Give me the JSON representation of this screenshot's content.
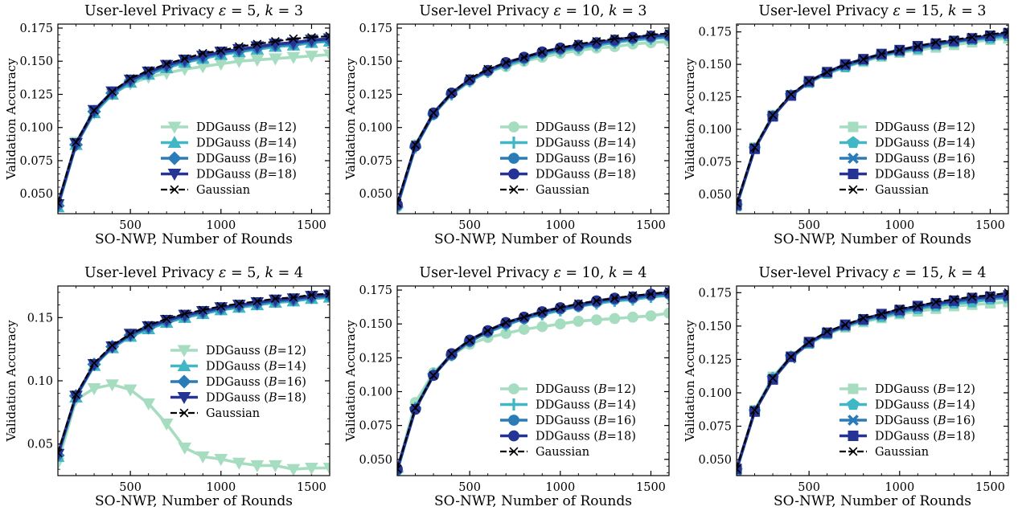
{
  "legend_prefix": "DDGauss (",
  "legend_suffix": ")",
  "legend_var": "B",
  "gaussian_label": "Gaussian",
  "colors": {
    "b12": "#a6dcc0",
    "b14": "#41b6c4",
    "b16": "#2b7bb9",
    "b18": "#253494",
    "gauss": "#000000"
  },
  "chart_data": [
    {
      "type": "line",
      "title": "User-level Privacy ε = 5, k = 3",
      "xlabel": "SO-NWP, Number of Rounds",
      "ylabel": "Validation Accuracy",
      "xlim": [
        100,
        1600
      ],
      "ylim": [
        0.035,
        0.178
      ],
      "xticks": [
        500,
        1000,
        1500
      ],
      "yticks": [
        0.05,
        0.075,
        0.1,
        0.125,
        0.15,
        0.175
      ],
      "ytick_labels": [
        "0.050",
        "0.075",
        "0.100",
        "0.125",
        "0.150",
        "0.175"
      ],
      "legend_position": "lower-right",
      "markers": [
        "tri-down",
        "tri-up",
        "diamond",
        "tri-down"
      ],
      "x": [
        100,
        200,
        300,
        400,
        500,
        600,
        700,
        800,
        900,
        1000,
        1100,
        1200,
        1300,
        1400,
        1500,
        1600
      ],
      "series": [
        {
          "name": "B=12",
          "values": [
            0.04,
            0.089,
            0.111,
            0.125,
            0.133,
            0.138,
            0.141,
            0.144,
            0.146,
            0.148,
            0.15,
            0.151,
            0.152,
            0.153,
            0.154,
            0.155
          ]
        },
        {
          "name": "B=14",
          "values": [
            0.04,
            0.087,
            0.111,
            0.125,
            0.134,
            0.14,
            0.145,
            0.149,
            0.152,
            0.155,
            0.157,
            0.159,
            0.161,
            0.162,
            0.164,
            0.165
          ]
        },
        {
          "name": "B=16",
          "values": [
            0.041,
            0.087,
            0.112,
            0.126,
            0.135,
            0.141,
            0.146,
            0.15,
            0.153,
            0.156,
            0.158,
            0.16,
            0.162,
            0.163,
            0.165,
            0.166
          ]
        },
        {
          "name": "B=18",
          "values": [
            0.042,
            0.088,
            0.113,
            0.127,
            0.136,
            0.142,
            0.147,
            0.151,
            0.154,
            0.157,
            0.159,
            0.161,
            0.163,
            0.164,
            0.166,
            0.167
          ]
        },
        {
          "name": "Gaussian",
          "values": [
            0.043,
            0.089,
            0.113,
            0.127,
            0.137,
            0.143,
            0.148,
            0.152,
            0.156,
            0.158,
            0.161,
            0.163,
            0.165,
            0.167,
            0.168,
            0.169
          ]
        }
      ]
    },
    {
      "type": "line",
      "title": "User-level Privacy ε = 10, k = 3",
      "xlabel": "SO-NWP, Number of Rounds",
      "ylabel": "Validation Accuracy",
      "xlim": [
        100,
        1600
      ],
      "ylim": [
        0.035,
        0.178
      ],
      "xticks": [
        500,
        1000,
        1500
      ],
      "yticks": [
        0.05,
        0.075,
        0.1,
        0.125,
        0.15,
        0.175
      ],
      "ytick_labels": [
        "0.050",
        "0.075",
        "0.100",
        "0.125",
        "0.150",
        "0.175"
      ],
      "legend_position": "lower-right",
      "markers": [
        "circle",
        "plus",
        "circle",
        "circle"
      ],
      "x": [
        100,
        200,
        300,
        400,
        500,
        600,
        700,
        800,
        900,
        1000,
        1100,
        1200,
        1300,
        1400,
        1500,
        1600
      ],
      "series": [
        {
          "name": "B=12",
          "values": [
            0.04,
            0.087,
            0.111,
            0.126,
            0.135,
            0.142,
            0.146,
            0.15,
            0.153,
            0.156,
            0.158,
            0.16,
            0.161,
            0.163,
            0.164,
            0.165
          ]
        },
        {
          "name": "B=14",
          "values": [
            0.04,
            0.085,
            0.11,
            0.125,
            0.135,
            0.142,
            0.147,
            0.151,
            0.155,
            0.158,
            0.16,
            0.162,
            0.164,
            0.166,
            0.167,
            0.168
          ]
        },
        {
          "name": "B=16",
          "values": [
            0.041,
            0.086,
            0.11,
            0.126,
            0.136,
            0.143,
            0.148,
            0.152,
            0.156,
            0.159,
            0.161,
            0.163,
            0.165,
            0.167,
            0.168,
            0.169
          ]
        },
        {
          "name": "B=18",
          "values": [
            0.042,
            0.086,
            0.111,
            0.126,
            0.136,
            0.143,
            0.149,
            0.153,
            0.157,
            0.16,
            0.162,
            0.164,
            0.166,
            0.168,
            0.169,
            0.17
          ]
        },
        {
          "name": "Gaussian",
          "values": [
            0.043,
            0.087,
            0.111,
            0.126,
            0.137,
            0.144,
            0.149,
            0.153,
            0.157,
            0.16,
            0.163,
            0.165,
            0.167,
            0.168,
            0.17,
            0.171
          ]
        }
      ]
    },
    {
      "type": "line",
      "title": "User-level Privacy ε = 15, k = 3",
      "xlabel": "SO-NWP, Number of Rounds",
      "ylabel": "Validation Accuracy",
      "xlim": [
        100,
        1600
      ],
      "ylim": [
        0.035,
        0.181
      ],
      "xticks": [
        500,
        1000,
        1500
      ],
      "yticks": [
        0.05,
        0.075,
        0.1,
        0.125,
        0.15,
        0.175
      ],
      "ytick_labels": [
        "0.050",
        "0.075",
        "0.100",
        "0.125",
        "0.150",
        "0.175"
      ],
      "legend_position": "lower-right",
      "markers": [
        "square",
        "pentagon",
        "cross",
        "square"
      ],
      "x": [
        100,
        200,
        300,
        400,
        500,
        600,
        700,
        800,
        900,
        1000,
        1100,
        1200,
        1300,
        1400,
        1500,
        1600
      ],
      "series": [
        {
          "name": "B=12",
          "values": [
            0.041,
            0.086,
            0.111,
            0.126,
            0.136,
            0.143,
            0.148,
            0.152,
            0.156,
            0.159,
            0.161,
            0.163,
            0.165,
            0.167,
            0.169,
            0.17
          ]
        },
        {
          "name": "B=14",
          "values": [
            0.041,
            0.085,
            0.11,
            0.126,
            0.136,
            0.143,
            0.148,
            0.153,
            0.157,
            0.16,
            0.162,
            0.165,
            0.167,
            0.169,
            0.17,
            0.172
          ]
        },
        {
          "name": "B=16",
          "values": [
            0.041,
            0.085,
            0.11,
            0.126,
            0.136,
            0.144,
            0.149,
            0.153,
            0.157,
            0.16,
            0.163,
            0.165,
            0.168,
            0.169,
            0.171,
            0.173
          ]
        },
        {
          "name": "B=18",
          "values": [
            0.042,
            0.085,
            0.11,
            0.126,
            0.137,
            0.144,
            0.15,
            0.154,
            0.158,
            0.161,
            0.164,
            0.166,
            0.168,
            0.17,
            0.172,
            0.174
          ]
        },
        {
          "name": "Gaussian",
          "values": [
            0.043,
            0.086,
            0.111,
            0.127,
            0.137,
            0.144,
            0.15,
            0.154,
            0.158,
            0.161,
            0.164,
            0.167,
            0.169,
            0.171,
            0.173,
            0.175
          ]
        }
      ]
    },
    {
      "type": "line",
      "title": "User-level Privacy ε = 5, k = 4",
      "xlabel": "SO-NWP, Number of Rounds",
      "ylabel": "Validation Accuracy",
      "xlim": [
        100,
        1600
      ],
      "ylim": [
        0.025,
        0.175
      ],
      "xticks": [
        500,
        1000,
        1500
      ],
      "yticks": [
        0.05,
        0.1,
        0.15
      ],
      "ytick_labels": [
        "0.05",
        "0.10",
        "0.15"
      ],
      "legend_position": "center-right",
      "markers": [
        "tri-down",
        "tri-up",
        "diamond",
        "tri-down"
      ],
      "x": [
        100,
        200,
        300,
        400,
        500,
        600,
        700,
        800,
        900,
        1000,
        1100,
        1200,
        1300,
        1400,
        1500,
        1600
      ],
      "series": [
        {
          "name": "B=12",
          "values": [
            0.035,
            0.085,
            0.094,
            0.097,
            0.093,
            0.082,
            0.066,
            0.047,
            0.04,
            0.038,
            0.035,
            0.033,
            0.033,
            0.03,
            0.031,
            0.031
          ]
        },
        {
          "name": "B=14",
          "values": [
            0.04,
            0.087,
            0.112,
            0.126,
            0.135,
            0.141,
            0.146,
            0.15,
            0.153,
            0.156,
            0.158,
            0.16,
            0.162,
            0.163,
            0.165,
            0.166
          ]
        },
        {
          "name": "B=16",
          "values": [
            0.041,
            0.088,
            0.113,
            0.127,
            0.136,
            0.142,
            0.147,
            0.151,
            0.154,
            0.157,
            0.159,
            0.161,
            0.163,
            0.164,
            0.166,
            0.167
          ]
        },
        {
          "name": "B=18",
          "values": [
            0.042,
            0.088,
            0.113,
            0.127,
            0.137,
            0.143,
            0.148,
            0.152,
            0.155,
            0.158,
            0.16,
            0.162,
            0.164,
            0.165,
            0.167,
            0.168
          ]
        },
        {
          "name": "Gaussian",
          "values": [
            0.043,
            0.089,
            0.114,
            0.128,
            0.137,
            0.144,
            0.149,
            0.153,
            0.156,
            0.159,
            0.161,
            0.163,
            0.165,
            0.166,
            0.168,
            0.169
          ]
        }
      ]
    },
    {
      "type": "line",
      "title": "User-level Privacy ε = 10, k = 4",
      "xlabel": "SO-NWP, Number of Rounds",
      "ylabel": "Validation Accuracy",
      "xlim": [
        100,
        1600
      ],
      "ylim": [
        0.038,
        0.178
      ],
      "xticks": [
        500,
        1000,
        1500
      ],
      "yticks": [
        0.05,
        0.075,
        0.1,
        0.125,
        0.15,
        0.175
      ],
      "ytick_labels": [
        "0.050",
        "0.075",
        "0.100",
        "0.125",
        "0.150",
        "0.175"
      ],
      "legend_position": "lower-right",
      "markers": [
        "circle",
        "plus",
        "circle",
        "circle"
      ],
      "x": [
        100,
        200,
        300,
        400,
        500,
        600,
        700,
        800,
        900,
        1000,
        1100,
        1200,
        1300,
        1400,
        1500,
        1600
      ],
      "series": [
        {
          "name": "B=12",
          "values": [
            0.042,
            0.092,
            0.114,
            0.127,
            0.135,
            0.14,
            0.143,
            0.146,
            0.148,
            0.15,
            0.152,
            0.153,
            0.154,
            0.155,
            0.156,
            0.158
          ]
        },
        {
          "name": "B=14",
          "values": [
            0.041,
            0.088,
            0.113,
            0.127,
            0.137,
            0.144,
            0.149,
            0.154,
            0.157,
            0.16,
            0.163,
            0.165,
            0.167,
            0.168,
            0.17,
            0.171
          ]
        },
        {
          "name": "B=16",
          "values": [
            0.042,
            0.087,
            0.112,
            0.127,
            0.137,
            0.144,
            0.15,
            0.154,
            0.158,
            0.161,
            0.163,
            0.166,
            0.168,
            0.169,
            0.171,
            0.172
          ]
        },
        {
          "name": "B=18",
          "values": [
            0.043,
            0.087,
            0.112,
            0.128,
            0.138,
            0.145,
            0.151,
            0.155,
            0.159,
            0.162,
            0.164,
            0.167,
            0.169,
            0.17,
            0.172,
            0.173
          ]
        },
        {
          "name": "Gaussian",
          "values": [
            0.043,
            0.088,
            0.112,
            0.128,
            0.138,
            0.145,
            0.151,
            0.155,
            0.159,
            0.162,
            0.165,
            0.167,
            0.169,
            0.171,
            0.172,
            0.174
          ]
        }
      ]
    },
    {
      "type": "line",
      "title": "User-level Privacy ε = 15, k = 4",
      "xlabel": "SO-NWP, Number of Rounds",
      "ylabel": "Validation Accuracy",
      "xlim": [
        100,
        1600
      ],
      "ylim": [
        0.038,
        0.18
      ],
      "xticks": [
        500,
        1000,
        1500
      ],
      "yticks": [
        0.05,
        0.075,
        0.1,
        0.125,
        0.15,
        0.175
      ],
      "ytick_labels": [
        "0.050",
        "0.075",
        "0.100",
        "0.125",
        "0.150",
        "0.175"
      ],
      "legend_position": "lower-right",
      "markers": [
        "square",
        "pentagon",
        "cross",
        "square"
      ],
      "x": [
        100,
        200,
        300,
        400,
        500,
        600,
        700,
        800,
        900,
        1000,
        1100,
        1200,
        1300,
        1400,
        1500,
        1600
      ],
      "series": [
        {
          "name": "B=12",
          "values": [
            0.042,
            0.087,
            0.112,
            0.127,
            0.137,
            0.144,
            0.149,
            0.153,
            0.156,
            0.159,
            0.161,
            0.163,
            0.165,
            0.166,
            0.167,
            0.168
          ]
        },
        {
          "name": "B=14",
          "values": [
            0.042,
            0.086,
            0.111,
            0.127,
            0.137,
            0.144,
            0.15,
            0.154,
            0.157,
            0.16,
            0.163,
            0.165,
            0.167,
            0.168,
            0.17,
            0.171
          ]
        },
        {
          "name": "B=16",
          "values": [
            0.042,
            0.086,
            0.11,
            0.126,
            0.137,
            0.145,
            0.15,
            0.155,
            0.158,
            0.161,
            0.164,
            0.166,
            0.168,
            0.17,
            0.171,
            0.172
          ]
        },
        {
          "name": "B=18",
          "values": [
            0.043,
            0.086,
            0.11,
            0.127,
            0.138,
            0.145,
            0.151,
            0.155,
            0.159,
            0.162,
            0.165,
            0.167,
            0.169,
            0.171,
            0.172,
            0.173
          ]
        },
        {
          "name": "Gaussian",
          "values": [
            0.043,
            0.087,
            0.111,
            0.127,
            0.138,
            0.146,
            0.151,
            0.156,
            0.159,
            0.163,
            0.165,
            0.168,
            0.17,
            0.172,
            0.173,
            0.175
          ]
        }
      ]
    }
  ]
}
